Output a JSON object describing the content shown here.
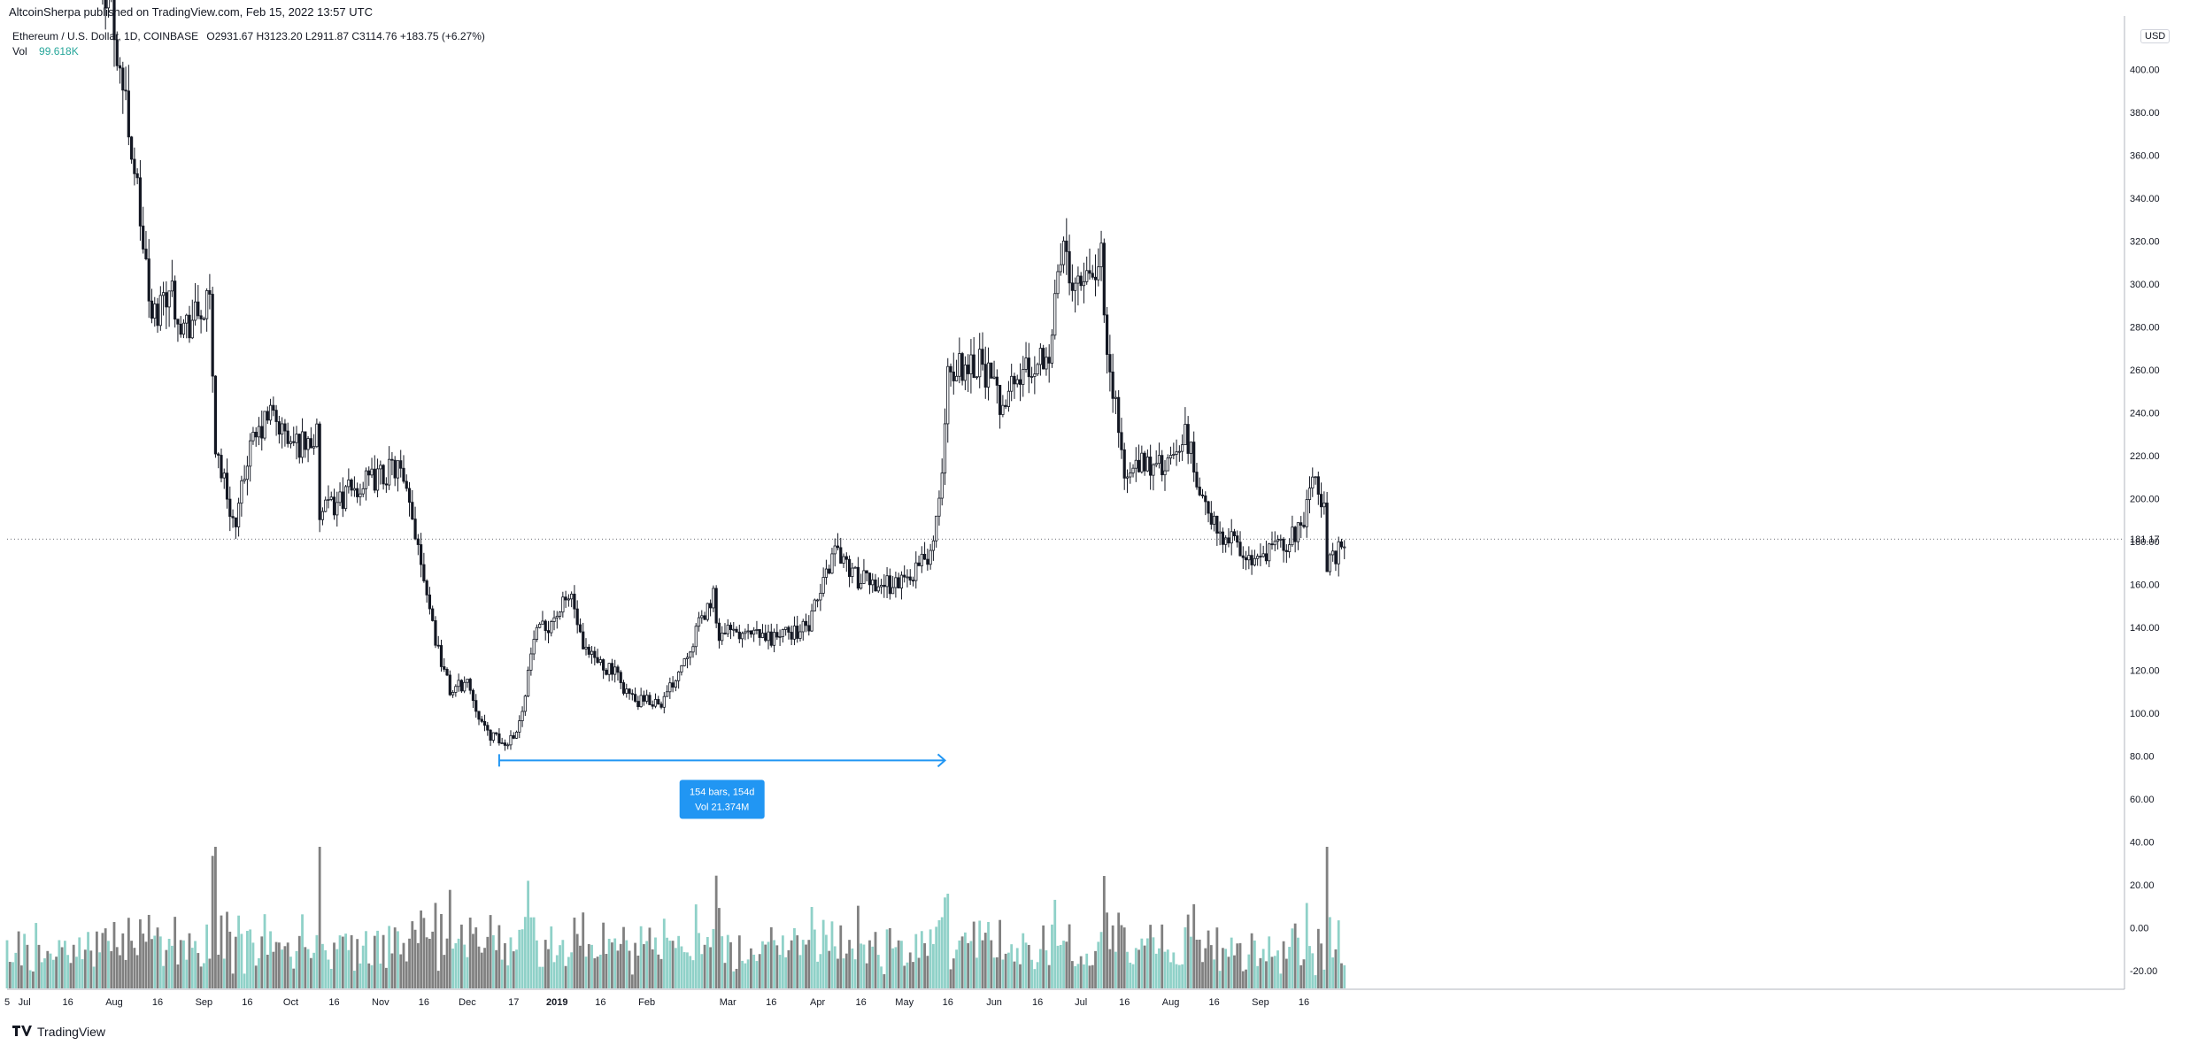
{
  "header": {
    "published": "AltcoinSherpa published on TradingView.com, Feb 15, 2022 13:57 UTC",
    "symbol": "Ethereum / U.S. Dollar, 1D, COINBASE",
    "ohlc": "O2931.67 H3123.20 L2911.87 C3114.76 +183.75 (+6.27%)",
    "vol_label": "Vol",
    "vol_value": "99.618K"
  },
  "axis": {
    "currency": "USD",
    "price_ticks": [
      "400.00",
      "380.00",
      "360.00",
      "340.00",
      "320.00",
      "300.00",
      "280.00",
      "260.00",
      "240.00",
      "220.00",
      "200.00",
      "180.00",
      "160.00",
      "140.00",
      "120.00",
      "100.00",
      "80.00",
      "60.00",
      "40.00",
      "20.00",
      "0.00",
      "-20.00"
    ],
    "last_price": "181.17",
    "time_ticks": [
      "5",
      "Jul",
      "16",
      "Aug",
      "16",
      "Sep",
      "16",
      "Oct",
      "16",
      "Nov",
      "16",
      "Dec",
      "17",
      "2019",
      "16",
      "Feb",
      "Mar",
      "16",
      "Apr",
      "16",
      "May",
      "16",
      "Jun",
      "16",
      "Jul",
      "16",
      "Aug",
      "16",
      "Sep",
      "16"
    ]
  },
  "measure": {
    "line1": "154 bars, 154d",
    "line2": "Vol 21.374M"
  },
  "footer": {
    "brand": "TradingView"
  },
  "colors": {
    "up_vol": "#8fd1c8",
    "down_vol": "#808080",
    "candle": "#131722",
    "measure": "#2196f3",
    "last_price_label": "#131722"
  },
  "chart_data": {
    "type": "candlestick",
    "title": "Ethereum / U.S. Dollar, 1D, COINBASE",
    "ylabel": "USD",
    "ylim": [
      -20,
      410
    ],
    "anchors": [
      {
        "date": "2018-06-25",
        "close": 455
      },
      {
        "date": "2018-07-24",
        "close": 470
      },
      {
        "date": "2018-07-31",
        "close": 430
      },
      {
        "date": "2018-08-08",
        "close": 355
      },
      {
        "date": "2018-08-14",
        "close": 282
      },
      {
        "date": "2018-08-20",
        "close": 300
      },
      {
        "date": "2018-08-25",
        "close": 280
      },
      {
        "date": "2018-09-03",
        "close": 290
      },
      {
        "date": "2018-09-05",
        "close": 225
      },
      {
        "date": "2018-09-12",
        "close": 185
      },
      {
        "date": "2018-09-16",
        "close": 220
      },
      {
        "date": "2018-09-24",
        "close": 240
      },
      {
        "date": "2018-10-01",
        "close": 225
      },
      {
        "date": "2018-10-10",
        "close": 228
      },
      {
        "date": "2018-10-11",
        "close": 192
      },
      {
        "date": "2018-10-20",
        "close": 202
      },
      {
        "date": "2018-11-07",
        "close": 215
      },
      {
        "date": "2018-11-14",
        "close": 180
      },
      {
        "date": "2018-11-20",
        "close": 135
      },
      {
        "date": "2018-11-25",
        "close": 110
      },
      {
        "date": "2018-12-01",
        "close": 115
      },
      {
        "date": "2018-12-07",
        "close": 92
      },
      {
        "date": "2018-12-14",
        "close": 85
      },
      {
        "date": "2018-12-19",
        "close": 95
      },
      {
        "date": "2018-12-24",
        "close": 135
      },
      {
        "date": "2018-12-28",
        "close": 140
      },
      {
        "date": "2019-01-06",
        "close": 155
      },
      {
        "date": "2019-01-10",
        "close": 128
      },
      {
        "date": "2019-01-20",
        "close": 120
      },
      {
        "date": "2019-01-28",
        "close": 105
      },
      {
        "date": "2019-02-07",
        "close": 106
      },
      {
        "date": "2019-02-17",
        "close": 135
      },
      {
        "date": "2019-02-24",
        "close": 155
      },
      {
        "date": "2019-02-25",
        "close": 138
      },
      {
        "date": "2019-03-15",
        "close": 135
      },
      {
        "date": "2019-03-29",
        "close": 140
      },
      {
        "date": "2019-04-07",
        "close": 178
      },
      {
        "date": "2019-04-15",
        "close": 162
      },
      {
        "date": "2019-04-27",
        "close": 160
      },
      {
        "date": "2019-05-02",
        "close": 163
      },
      {
        "date": "2019-05-10",
        "close": 175
      },
      {
        "date": "2019-05-13",
        "close": 195
      },
      {
        "date": "2019-05-16",
        "close": 260
      },
      {
        "date": "2019-05-27",
        "close": 265
      },
      {
        "date": "2019-06-03",
        "close": 245
      },
      {
        "date": "2019-06-12",
        "close": 260
      },
      {
        "date": "2019-06-20",
        "close": 270
      },
      {
        "date": "2019-06-25",
        "close": 320
      },
      {
        "date": "2019-06-27",
        "close": 305
      },
      {
        "date": "2019-07-08",
        "close": 310
      },
      {
        "date": "2019-07-10",
        "close": 275
      },
      {
        "date": "2019-07-16",
        "close": 210
      },
      {
        "date": "2019-07-22",
        "close": 215
      },
      {
        "date": "2019-08-01",
        "close": 215
      },
      {
        "date": "2019-08-06",
        "close": 230
      },
      {
        "date": "2019-08-14",
        "close": 190
      },
      {
        "date": "2019-08-30",
        "close": 170
      },
      {
        "date": "2019-09-15",
        "close": 185
      },
      {
        "date": "2019-09-19",
        "close": 215
      },
      {
        "date": "2019-09-23",
        "close": 195
      },
      {
        "date": "2019-09-24",
        "close": 168
      },
      {
        "date": "2019-09-30",
        "close": 180
      }
    ],
    "measure": {
      "from": "2018-12-12",
      "to": "2019-05-15",
      "price": 78,
      "bars": 154
    }
  }
}
